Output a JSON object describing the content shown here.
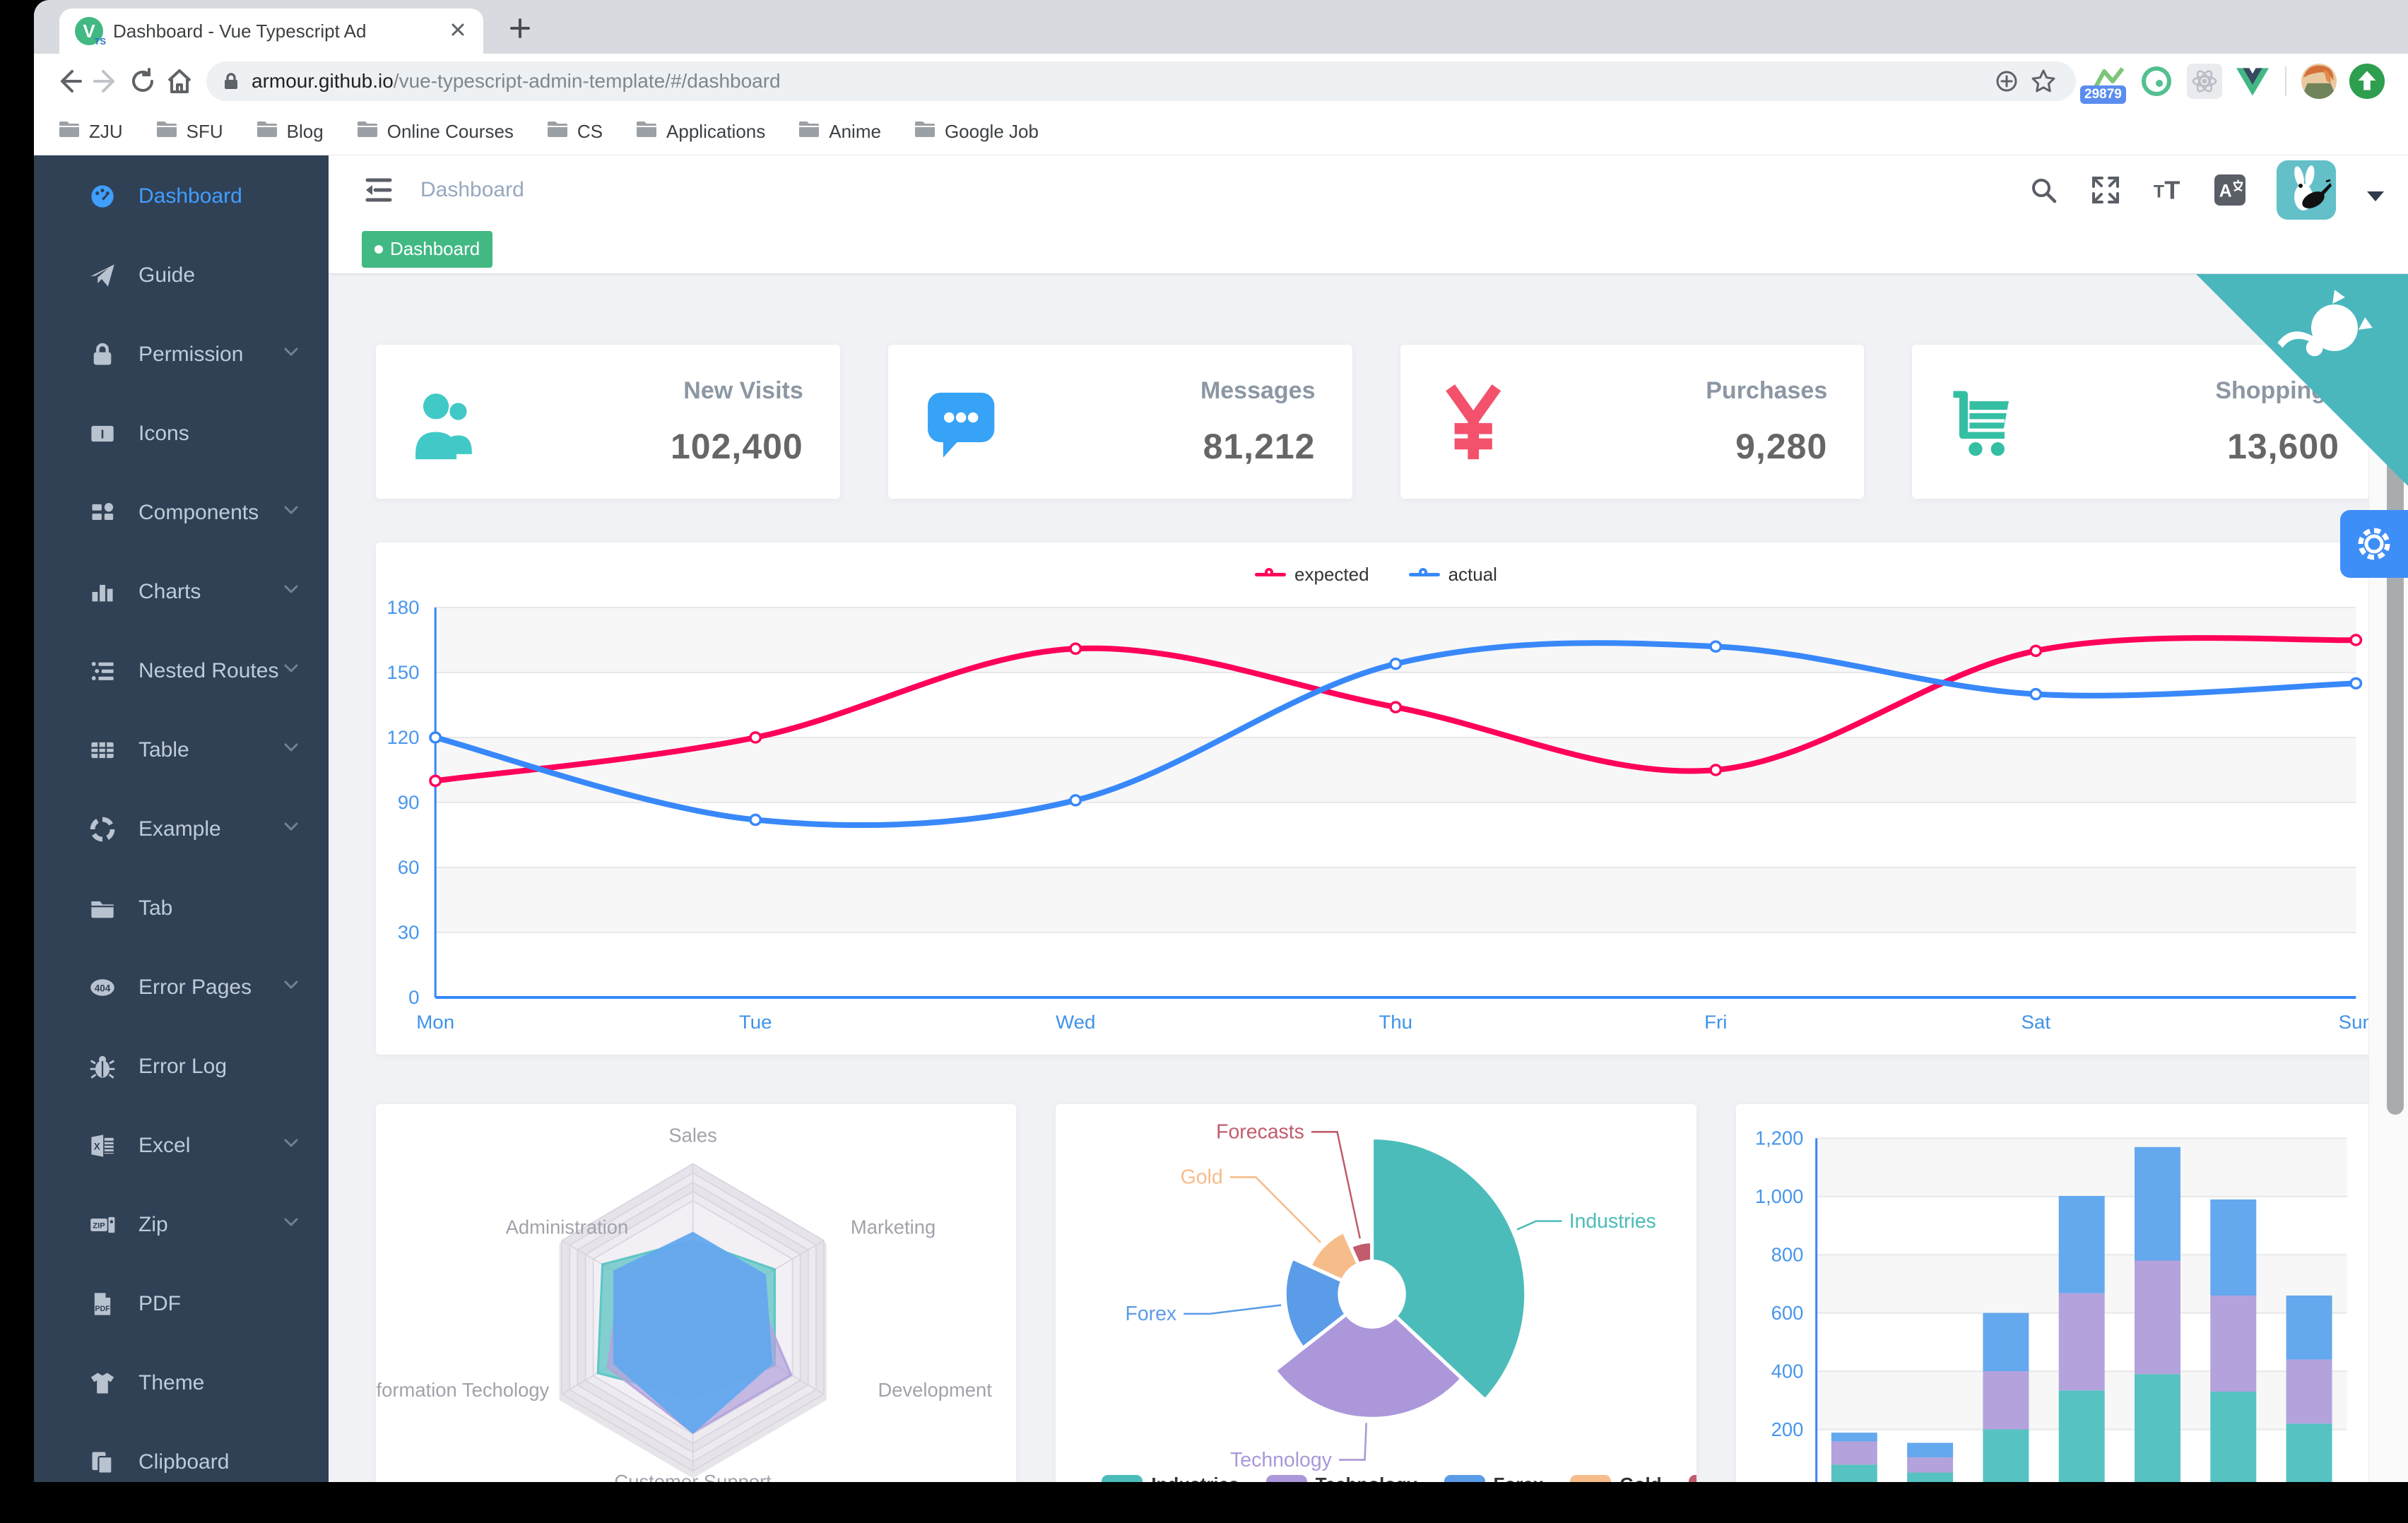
{
  "browser": {
    "tab": {
      "favicon_text": "V",
      "favicon_sub": "TS",
      "title": "Dashboard - Vue Typescript Ad"
    },
    "url": {
      "domain": "armour.github.io",
      "path": "/vue-typescript-admin-template/#/dashboard"
    },
    "bookmarks": [
      "ZJU",
      "SFU",
      "Blog",
      "Online Courses",
      "CS",
      "Applications",
      "Anime",
      "Google Job"
    ],
    "extensions": {
      "badge_count": "29879"
    }
  },
  "sidebar": {
    "items": [
      {
        "label": "Dashboard",
        "icon": "dashboard-icon",
        "active": true,
        "expandable": false
      },
      {
        "label": "Guide",
        "icon": "guide-icon",
        "active": false,
        "expandable": false
      },
      {
        "label": "Permission",
        "icon": "lock-icon",
        "active": false,
        "expandable": true
      },
      {
        "label": "Icons",
        "icon": "icons-icon",
        "active": false,
        "expandable": false
      },
      {
        "label": "Components",
        "icon": "components-icon",
        "active": false,
        "expandable": true
      },
      {
        "label": "Charts",
        "icon": "charts-icon",
        "active": false,
        "expandable": true
      },
      {
        "label": "Nested Routes",
        "icon": "nested-routes-icon",
        "active": false,
        "expandable": true
      },
      {
        "label": "Table",
        "icon": "table-icon",
        "active": false,
        "expandable": true
      },
      {
        "label": "Example",
        "icon": "example-icon",
        "active": false,
        "expandable": true
      },
      {
        "label": "Tab",
        "icon": "tab-icon",
        "active": false,
        "expandable": false
      },
      {
        "label": "Error Pages",
        "icon": "error-pages-icon",
        "active": false,
        "expandable": true
      },
      {
        "label": "Error Log",
        "icon": "bug-icon",
        "active": false,
        "expandable": false
      },
      {
        "label": "Excel",
        "icon": "excel-icon",
        "active": false,
        "expandable": true
      },
      {
        "label": "Zip",
        "icon": "zip-icon",
        "active": false,
        "expandable": true
      },
      {
        "label": "PDF",
        "icon": "pdf-icon",
        "active": false,
        "expandable": false
      },
      {
        "label": "Theme",
        "icon": "theme-icon",
        "active": false,
        "expandable": false
      },
      {
        "label": "Clipboard",
        "icon": "clipboard-icon",
        "active": false,
        "expandable": false
      }
    ]
  },
  "navbar": {
    "breadcrumb": "Dashboard"
  },
  "tags_view": {
    "tags": [
      {
        "label": "Dashboard",
        "active": true
      }
    ]
  },
  "panel_cards": [
    {
      "title": "New Visits",
      "value": "102,400",
      "icon": "people-icon",
      "color": "#40c9c6"
    },
    {
      "title": "Messages",
      "value": "81,212",
      "icon": "message-icon",
      "color": "#36a3f7"
    },
    {
      "title": "Purchases",
      "value": "9,280",
      "icon": "money-icon",
      "color": "#f4516c"
    },
    {
      "title": "Shoppings",
      "value": "13,600",
      "icon": "shopping-icon",
      "color": "#34bfa3"
    }
  ],
  "chart_data": [
    {
      "type": "line",
      "x": [
        "Mon",
        "Tue",
        "Wed",
        "Thu",
        "Fri",
        "Sat",
        "Sun"
      ],
      "ylim": [
        0,
        180
      ],
      "ytick_step": 30,
      "grid": true,
      "legend_position": "top",
      "series": [
        {
          "name": "expected",
          "color": "#FF005A",
          "values": [
            100,
            120,
            161,
            134,
            105,
            160,
            165
          ]
        },
        {
          "name": "actual",
          "color": "#3888fa",
          "values": [
            120,
            82,
            91,
            154,
            162,
            140,
            145
          ]
        }
      ]
    },
    {
      "type": "radar",
      "indicators": [
        {
          "name": "Sales",
          "max": 10000
        },
        {
          "name": "Marketing",
          "max": 20000
        },
        {
          "name": "Development",
          "max": 20000
        },
        {
          "name": "Customer Support",
          "max": 20000
        },
        {
          "name": "Information Techology",
          "max": 20000
        },
        {
          "name": "Administration",
          "max": 20000
        }
      ],
      "series": [
        {
          "color": "#56c2c2",
          "values": [
            5000,
            12500,
            12500,
            10500,
            14500,
            13800
          ]
        },
        {
          "color": "#b3a2dc",
          "values": [
            4000,
            9000,
            15000,
            15000,
            13000,
            11000
          ]
        },
        {
          "color": "#64a8ee",
          "values": [
            5500,
            11000,
            12000,
            15000,
            12000,
            12000
          ]
        }
      ]
    },
    {
      "type": "pie",
      "rose": true,
      "legend_position": "bottom",
      "slices": [
        {
          "name": "Industries",
          "value": 320,
          "color": "#4bbcb9"
        },
        {
          "name": "Technology",
          "value": 240,
          "color": "#ab97d9"
        },
        {
          "name": "Forex",
          "value": 149,
          "color": "#5b9ce8"
        },
        {
          "name": "Gold",
          "value": 100,
          "color": "#f6bc8a"
        },
        {
          "name": "Forecasts",
          "value": 59,
          "color": "#c05c6c"
        }
      ]
    },
    {
      "type": "bar",
      "stacked": true,
      "ylim": [
        0,
        1200
      ],
      "ytick_step": 200,
      "series": [
        {
          "color": "#56c2c2",
          "values": [
            79,
            52,
            200,
            334,
            390,
            330,
            220
          ]
        },
        {
          "color": "#b3a2dc",
          "values": [
            80,
            52,
            200,
            334,
            390,
            330,
            220
          ]
        },
        {
          "color": "#64a8ee",
          "values": [
            30,
            50,
            200,
            334,
            390,
            330,
            220
          ]
        }
      ]
    }
  ]
}
